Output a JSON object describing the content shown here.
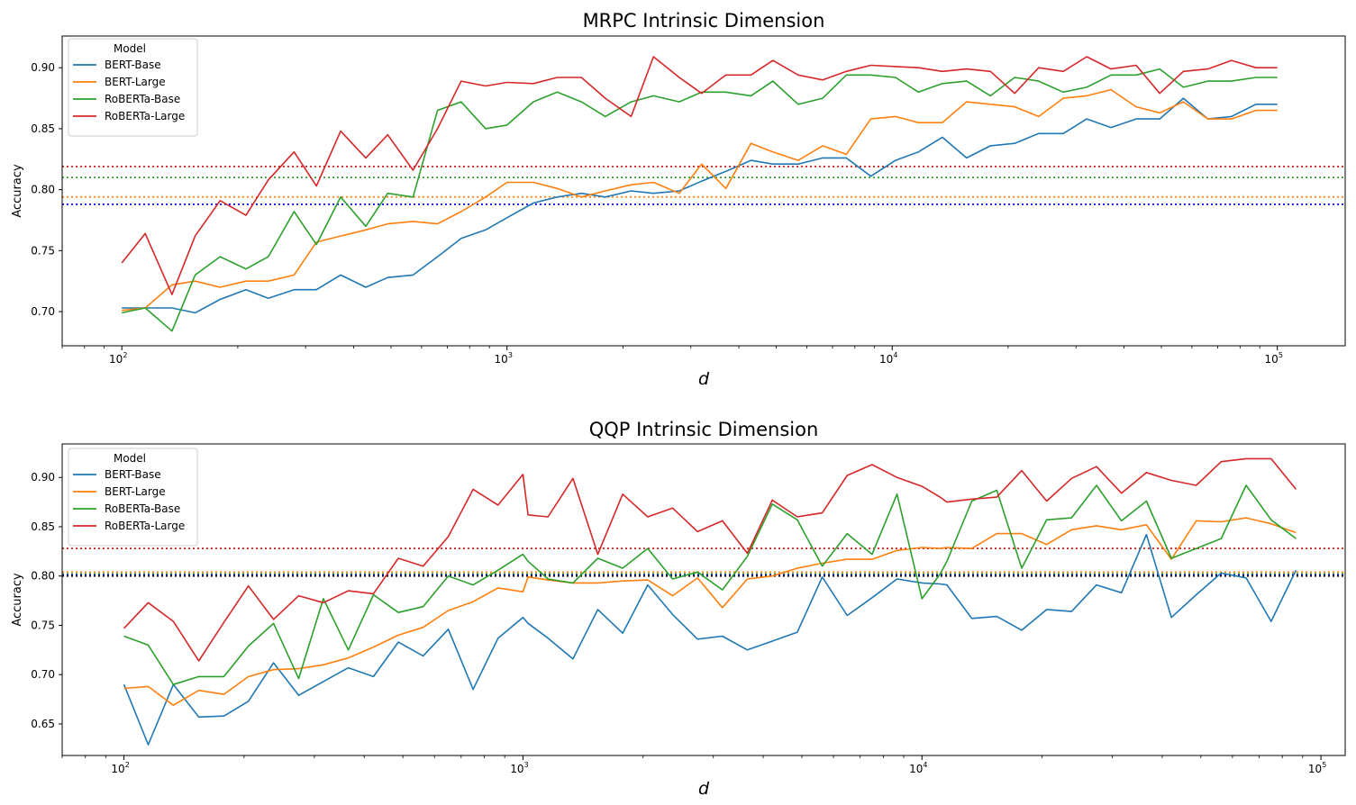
{
  "chart_data": [
    {
      "type": "line",
      "title": "MRPC Intrinsic Dimension",
      "xlabel": "d",
      "ylabel": "Accuracy",
      "xscale": "log",
      "xlim": [
        70,
        150000
      ],
      "ylim": [
        0.672,
        0.926
      ],
      "yticks": [
        0.7,
        0.75,
        0.8,
        0.85,
        0.9
      ],
      "ytick_labels": [
        "0.70",
        "0.75",
        "0.80",
        "0.85",
        "0.90"
      ],
      "xticks": [
        100,
        1000,
        10000,
        100000
      ],
      "xtick_labels": [
        {
          "base": "10",
          "exp": "2"
        },
        {
          "base": "10",
          "exp": "3"
        },
        {
          "base": "10",
          "exp": "4"
        },
        {
          "base": "10",
          "exp": "5"
        }
      ],
      "grid": false,
      "legend": {
        "title": "Model",
        "placement": "top-left"
      },
      "x": [
        100,
        115,
        135,
        155,
        180,
        210,
        240,
        280,
        320,
        370,
        430,
        490,
        570,
        660,
        760,
        880,
        1000,
        1170,
        1350,
        1560,
        1800,
        2100,
        2400,
        2800,
        3200,
        3700,
        4300,
        4900,
        5700,
        6600,
        7600,
        8800,
        10200,
        11700,
        13500,
        15600,
        18000,
        20800,
        24000,
        27800,
        32000,
        37000,
        43000,
        49500,
        57000,
        66000,
        76000,
        88000,
        100000
      ],
      "series": [
        {
          "name": "BERT-Base",
          "color": "#1f77b4",
          "values": [
            0.703,
            0.703,
            0.703,
            0.699,
            0.71,
            0.718,
            0.711,
            0.718,
            0.718,
            0.73,
            0.72,
            0.728,
            0.73,
            0.745,
            0.76,
            0.767,
            0.777,
            0.789,
            0.794,
            0.797,
            0.794,
            0.799,
            0.797,
            0.799,
            0.807,
            0.815,
            0.824,
            0.821,
            0.821,
            0.826,
            0.826,
            0.811,
            0.824,
            0.831,
            0.843,
            0.826,
            0.836,
            0.838,
            0.846,
            0.846,
            0.858,
            0.851,
            0.858,
            0.858,
            0.875,
            0.858,
            0.86,
            0.87,
            0.87
          ]
        },
        {
          "name": "BERT-Large",
          "color": "#ff7f0e",
          "values": [
            0.701,
            0.703,
            0.722,
            0.725,
            0.72,
            0.725,
            0.725,
            0.73,
            0.757,
            0.762,
            0.767,
            0.772,
            0.774,
            0.772,
            0.782,
            0.794,
            0.806,
            0.806,
            0.801,
            0.794,
            0.799,
            0.804,
            0.806,
            0.797,
            0.821,
            0.801,
            0.838,
            0.831,
            0.824,
            0.836,
            0.829,
            0.858,
            0.86,
            0.855,
            0.855,
            0.872,
            0.87,
            0.868,
            0.86,
            0.875,
            0.877,
            0.882,
            0.868,
            0.863,
            0.872,
            0.858,
            0.858,
            0.865,
            0.865
          ]
        },
        {
          "name": "RoBERTa-Base",
          "color": "#2ca02c",
          "values": [
            0.699,
            0.703,
            0.684,
            0.73,
            0.745,
            0.735,
            0.745,
            0.782,
            0.755,
            0.794,
            0.77,
            0.797,
            0.794,
            0.865,
            0.872,
            0.85,
            0.853,
            0.872,
            0.88,
            0.872,
            0.86,
            0.872,
            0.877,
            0.872,
            0.88,
            0.88,
            0.877,
            0.889,
            0.87,
            0.875,
            0.894,
            0.894,
            0.892,
            0.88,
            0.887,
            0.889,
            0.877,
            0.892,
            0.889,
            0.88,
            0.884,
            0.894,
            0.894,
            0.899,
            0.884,
            0.889,
            0.889,
            0.892,
            0.892
          ]
        },
        {
          "name": "RoBERTa-Large",
          "color": "#d62728",
          "values": [
            0.74,
            0.764,
            0.714,
            0.762,
            0.791,
            0.779,
            0.808,
            0.831,
            0.803,
            0.848,
            0.826,
            0.845,
            0.816,
            0.85,
            0.889,
            0.885,
            0.888,
            0.887,
            0.892,
            0.892,
            0.875,
            0.86,
            0.909,
            0.892,
            0.879,
            0.894,
            0.894,
            0.906,
            0.894,
            0.89,
            0.897,
            0.902,
            0.901,
            0.9,
            0.897,
            0.899,
            0.897,
            0.879,
            0.9,
            0.897,
            0.909,
            0.899,
            0.902,
            0.879,
            0.897,
            0.899,
            0.906,
            0.9,
            0.9
          ]
        }
      ],
      "baselines": [
        {
          "color": "#d62728",
          "y": 0.819
        },
        {
          "color": "#2ca02c",
          "y": 0.81
        },
        {
          "color": "#ff7f0e",
          "y": 0.794
        },
        {
          "color": "#0000ff",
          "y": 0.788
        }
      ]
    },
    {
      "type": "line",
      "title": "QQP Intrinsic Dimension",
      "xlabel": "d",
      "ylabel": "Accuracy",
      "xscale": "log",
      "xlim": [
        70,
        115000
      ],
      "ylim": [
        0.618,
        0.934
      ],
      "yticks": [
        0.65,
        0.7,
        0.75,
        0.8,
        0.85,
        0.9
      ],
      "ytick_labels": [
        "0.65",
        "0.70",
        "0.75",
        "0.80",
        "0.85",
        "0.90"
      ],
      "xticks": [
        100,
        1000,
        10000,
        100000
      ],
      "xtick_labels": [
        {
          "base": "10",
          "exp": "2"
        },
        {
          "base": "10",
          "exp": "3"
        },
        {
          "base": "10",
          "exp": "4"
        },
        {
          "base": "10",
          "exp": "5"
        }
      ],
      "grid": false,
      "legend": {
        "title": "Model",
        "placement": "top-left"
      },
      "x": [
        100,
        115,
        133,
        154,
        178,
        205,
        237,
        274,
        316,
        365,
        422,
        487,
        562,
        650,
        750,
        866,
        1000,
        1030,
        1155,
        1334,
        1540,
        1778,
        2054,
        2371,
        2738,
        3162,
        3651,
        4217,
        4870,
        5623,
        6494,
        7499,
        8660,
        10000,
        11100,
        11550,
        13335,
        15400,
        17783,
        20535,
        23713,
        27384,
        31623,
        36517,
        42170,
        48697,
        56234,
        64938,
        74989,
        86596
      ],
      "series": [
        {
          "name": "BERT-Base",
          "color": "#1f77b4",
          "values": [
            0.69,
            0.629,
            0.69,
            0.657,
            0.658,
            0.673,
            0.712,
            0.679,
            0.693,
            0.707,
            0.698,
            0.733,
            0.719,
            0.746,
            0.685,
            0.737,
            0.758,
            0.752,
            0.737,
            0.716,
            0.766,
            0.742,
            0.791,
            0.761,
            0.736,
            0.739,
            0.725,
            0.734,
            0.743,
            0.799,
            0.76,
            0.778,
            0.797,
            0.793,
            0.792,
            0.791,
            0.757,
            0.759,
            0.745,
            0.766,
            0.764,
            0.791,
            0.783,
            0.842,
            0.758,
            0.781,
            0.803,
            0.798,
            0.754,
            0.806
          ]
        },
        {
          "name": "BERT-Large",
          "color": "#ff7f0e",
          "values": [
            0.686,
            0.688,
            0.669,
            0.684,
            0.68,
            0.698,
            0.705,
            0.706,
            0.71,
            0.717,
            0.728,
            0.74,
            0.748,
            0.765,
            0.774,
            0.788,
            0.784,
            0.799,
            0.796,
            0.793,
            0.793,
            0.795,
            0.796,
            0.78,
            0.798,
            0.768,
            0.797,
            0.8,
            0.808,
            0.813,
            0.817,
            0.817,
            0.826,
            0.829,
            0.828,
            0.829,
            0.828,
            0.843,
            0.843,
            0.832,
            0.847,
            0.851,
            0.847,
            0.852,
            0.817,
            0.856,
            0.855,
            0.859,
            0.853,
            0.844
          ]
        },
        {
          "name": "RoBERTa-Base",
          "color": "#2ca02c",
          "values": [
            0.739,
            0.73,
            0.69,
            0.698,
            0.698,
            0.729,
            0.752,
            0.696,
            0.777,
            0.725,
            0.781,
            0.763,
            0.769,
            0.8,
            0.791,
            0.806,
            0.822,
            0.815,
            0.797,
            0.793,
            0.818,
            0.808,
            0.828,
            0.797,
            0.804,
            0.786,
            0.82,
            0.873,
            0.857,
            0.81,
            0.843,
            0.822,
            0.883,
            0.777,
            0.802,
            0.815,
            0.876,
            0.887,
            0.808,
            0.857,
            0.859,
            0.892,
            0.856,
            0.876,
            0.818,
            0.828,
            0.838,
            0.892,
            0.857,
            0.838
          ]
        },
        {
          "name": "RoBERTa-Large",
          "color": "#d62728",
          "values": [
            0.747,
            0.773,
            0.754,
            0.714,
            0.753,
            0.79,
            0.756,
            0.78,
            0.773,
            0.785,
            0.782,
            0.818,
            0.81,
            0.84,
            0.888,
            0.872,
            0.903,
            0.862,
            0.86,
            0.899,
            0.822,
            0.883,
            0.86,
            0.869,
            0.845,
            0.856,
            0.823,
            0.877,
            0.86,
            0.864,
            0.902,
            0.913,
            0.9,
            0.891,
            0.88,
            0.875,
            0.878,
            0.88,
            0.907,
            0.876,
            0.899,
            0.911,
            0.884,
            0.905,
            0.897,
            0.892,
            0.916,
            0.919,
            0.919,
            0.888
          ]
        }
      ],
      "baselines": [
        {
          "color": "#d62728",
          "y": 0.828
        },
        {
          "color": "#ff7f0e",
          "y": 0.804
        },
        {
          "color": "#2ca02c",
          "y": 0.802
        },
        {
          "color": "#0000ff",
          "y": 0.801
        },
        {
          "color": "#1a1a1a",
          "y": 0.8
        }
      ]
    }
  ]
}
